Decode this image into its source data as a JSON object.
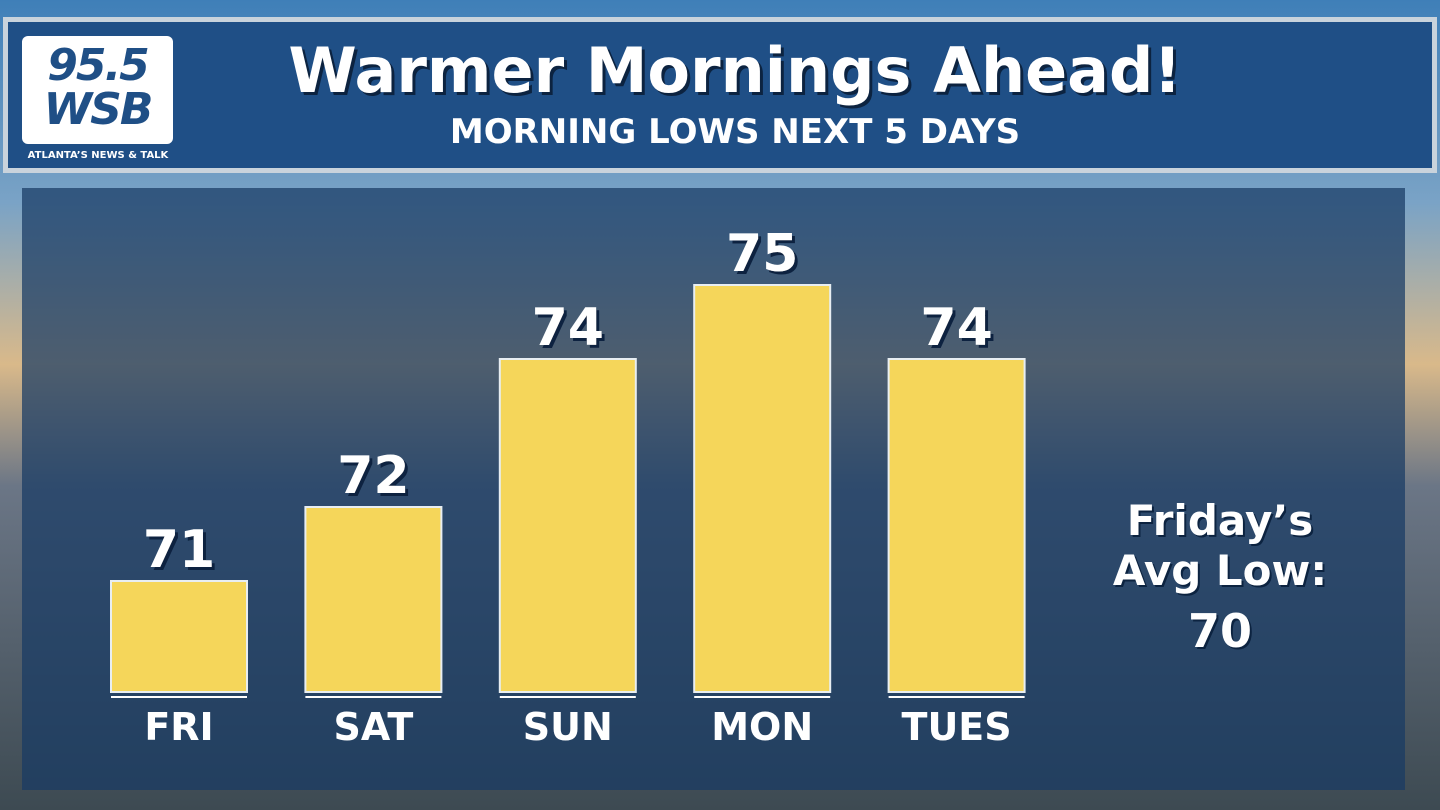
{
  "header": {
    "logo_number": "95.5",
    "logo_name": "WSB",
    "logo_tagline": "ATLANTA’S NEWS & TALK"
  },
  "chart_data": {
    "type": "bar",
    "title": "Warmer Mornings Ahead!",
    "subtitle": "MORNING LOWS NEXT 5 DAYS",
    "categories": [
      "FRI",
      "SAT",
      "SUN",
      "MON",
      "TUES"
    ],
    "values": [
      71,
      72,
      74,
      75,
      74
    ],
    "color": "#f5d65a",
    "ylim": [
      69.5,
      75.5
    ],
    "annotation": {
      "text": "Friday’s Avg Low:",
      "value": 70
    }
  }
}
